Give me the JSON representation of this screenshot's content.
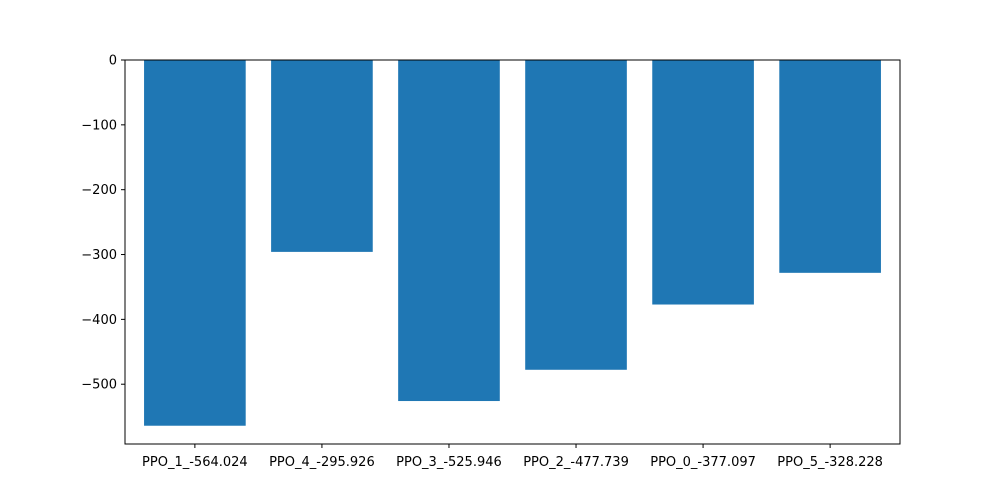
{
  "chart_data": {
    "type": "bar",
    "title": "",
    "xlabel": "",
    "ylabel": "",
    "categories": [
      "PPO_1_-564.024",
      "PPO_4_-295.926",
      "PPO_3_-525.946",
      "PPO_2_-477.739",
      "PPO_0_-377.097",
      "PPO_5_-328.228"
    ],
    "values": [
      -564.024,
      -295.926,
      -525.946,
      -477.739,
      -377.097,
      -328.228
    ],
    "ylim": [
      -592.2,
      0
    ],
    "yticks": [
      0,
      -100,
      -200,
      -300,
      -400,
      -500
    ],
    "ytick_labels": [
      "0",
      "−100",
      "−200",
      "−300",
      "−400",
      "−500"
    ],
    "grid": false,
    "legend": "none",
    "bar_color": "#1f77b4"
  }
}
